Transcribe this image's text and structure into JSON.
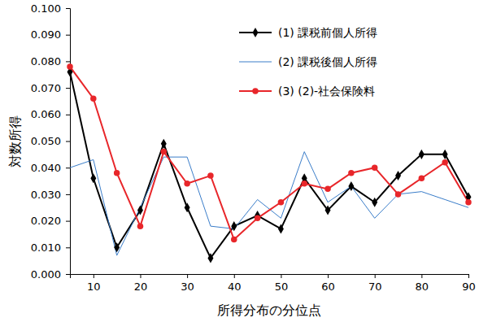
{
  "chart_data": {
    "type": "line",
    "x_label": "所得分布の分位点",
    "y_label": "対数所得",
    "x": [
      5,
      10,
      15,
      20,
      25,
      30,
      35,
      40,
      45,
      50,
      55,
      60,
      65,
      70,
      75,
      80,
      85,
      90
    ],
    "xlim": [
      5,
      90
    ],
    "xticks": [
      10,
      20,
      30,
      40,
      50,
      60,
      70,
      80,
      90
    ],
    "ylim": [
      0,
      0.1
    ],
    "yticks": [
      {
        "value": 0,
        "label": "0.000"
      },
      {
        "value": 0.01,
        "label": "0.010"
      },
      {
        "value": 0.02,
        "label": "0.020"
      },
      {
        "value": 0.03,
        "label": "0.030"
      },
      {
        "value": 0.04,
        "label": "0.040"
      },
      {
        "value": 0.05,
        "label": "0.050"
      },
      {
        "value": 0.06,
        "label": "0.060"
      },
      {
        "value": 0.07,
        "label": "0.070"
      },
      {
        "value": 0.08,
        "label": "0.080"
      },
      {
        "value": 0.09,
        "label": "0.090"
      },
      {
        "value": 0.1,
        "label": "0.100"
      }
    ],
    "grid": false,
    "legend": "upper right",
    "series": [
      {
        "name": "(1) 課税前個人所得",
        "color": "#000000",
        "marker": "diamond",
        "line_style": "solid",
        "values": [
          0.076,
          0.036,
          0.01,
          0.024,
          0.049,
          0.025,
          0.006,
          0.018,
          0.022,
          0.017,
          0.036,
          0.024,
          0.033,
          0.027,
          0.037,
          0.045,
          0.045,
          0.029
        ]
      },
      {
        "name": "(2) 課税後個人所得",
        "color": "#3a7dc9",
        "marker": "none",
        "line_style": "solid",
        "values": [
          0.04,
          0.043,
          0.007,
          0.025,
          0.044,
          0.044,
          0.018,
          0.017,
          0.028,
          0.021,
          0.046,
          0.027,
          0.033,
          0.021,
          0.03,
          0.031,
          0.028,
          0.025
        ]
      },
      {
        "name": "(3) (2)-社会保険料",
        "color": "#e8262a",
        "marker": "circle",
        "line_style": "solid",
        "values": [
          0.078,
          0.066,
          0.038,
          0.018,
          0.046,
          0.034,
          0.037,
          0.013,
          0.021,
          0.027,
          0.034,
          0.032,
          0.038,
          0.04,
          0.03,
          0.036,
          0.042,
          0.027
        ]
      }
    ]
  }
}
